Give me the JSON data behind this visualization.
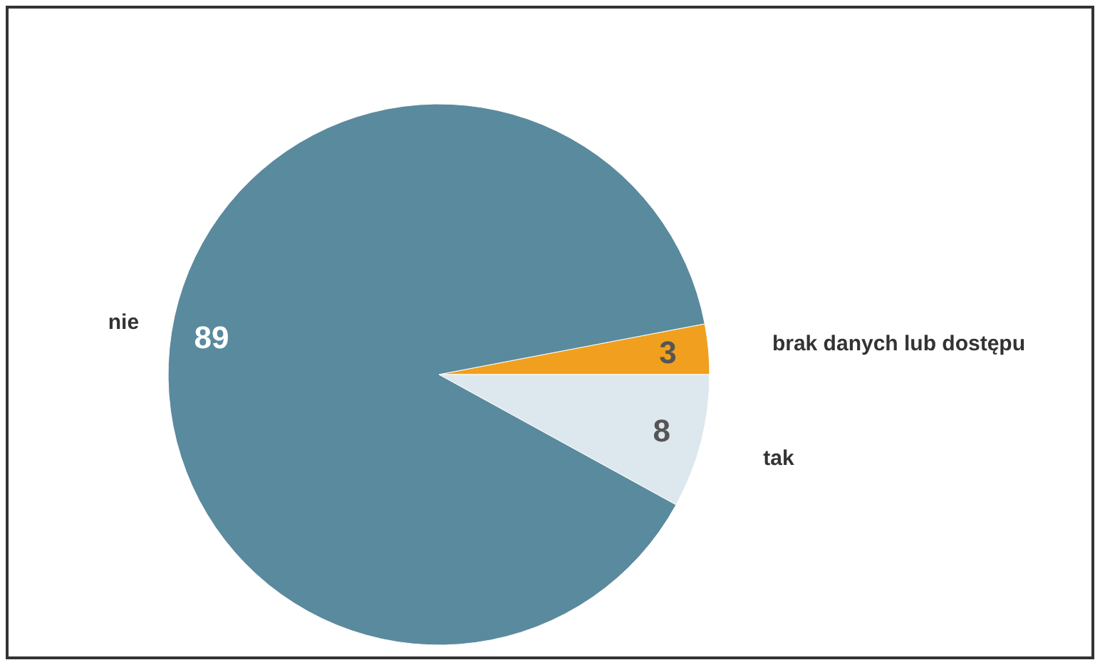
{
  "chart_data": {
    "type": "pie",
    "categories": [
      "brak danych lub dostępu",
      "tak",
      "nie"
    ],
    "values": [
      3,
      8,
      89
    ],
    "colors": [
      "#f0a01e",
      "#dde8ee",
      "#5a8a9e"
    ],
    "data_labels": true
  }
}
